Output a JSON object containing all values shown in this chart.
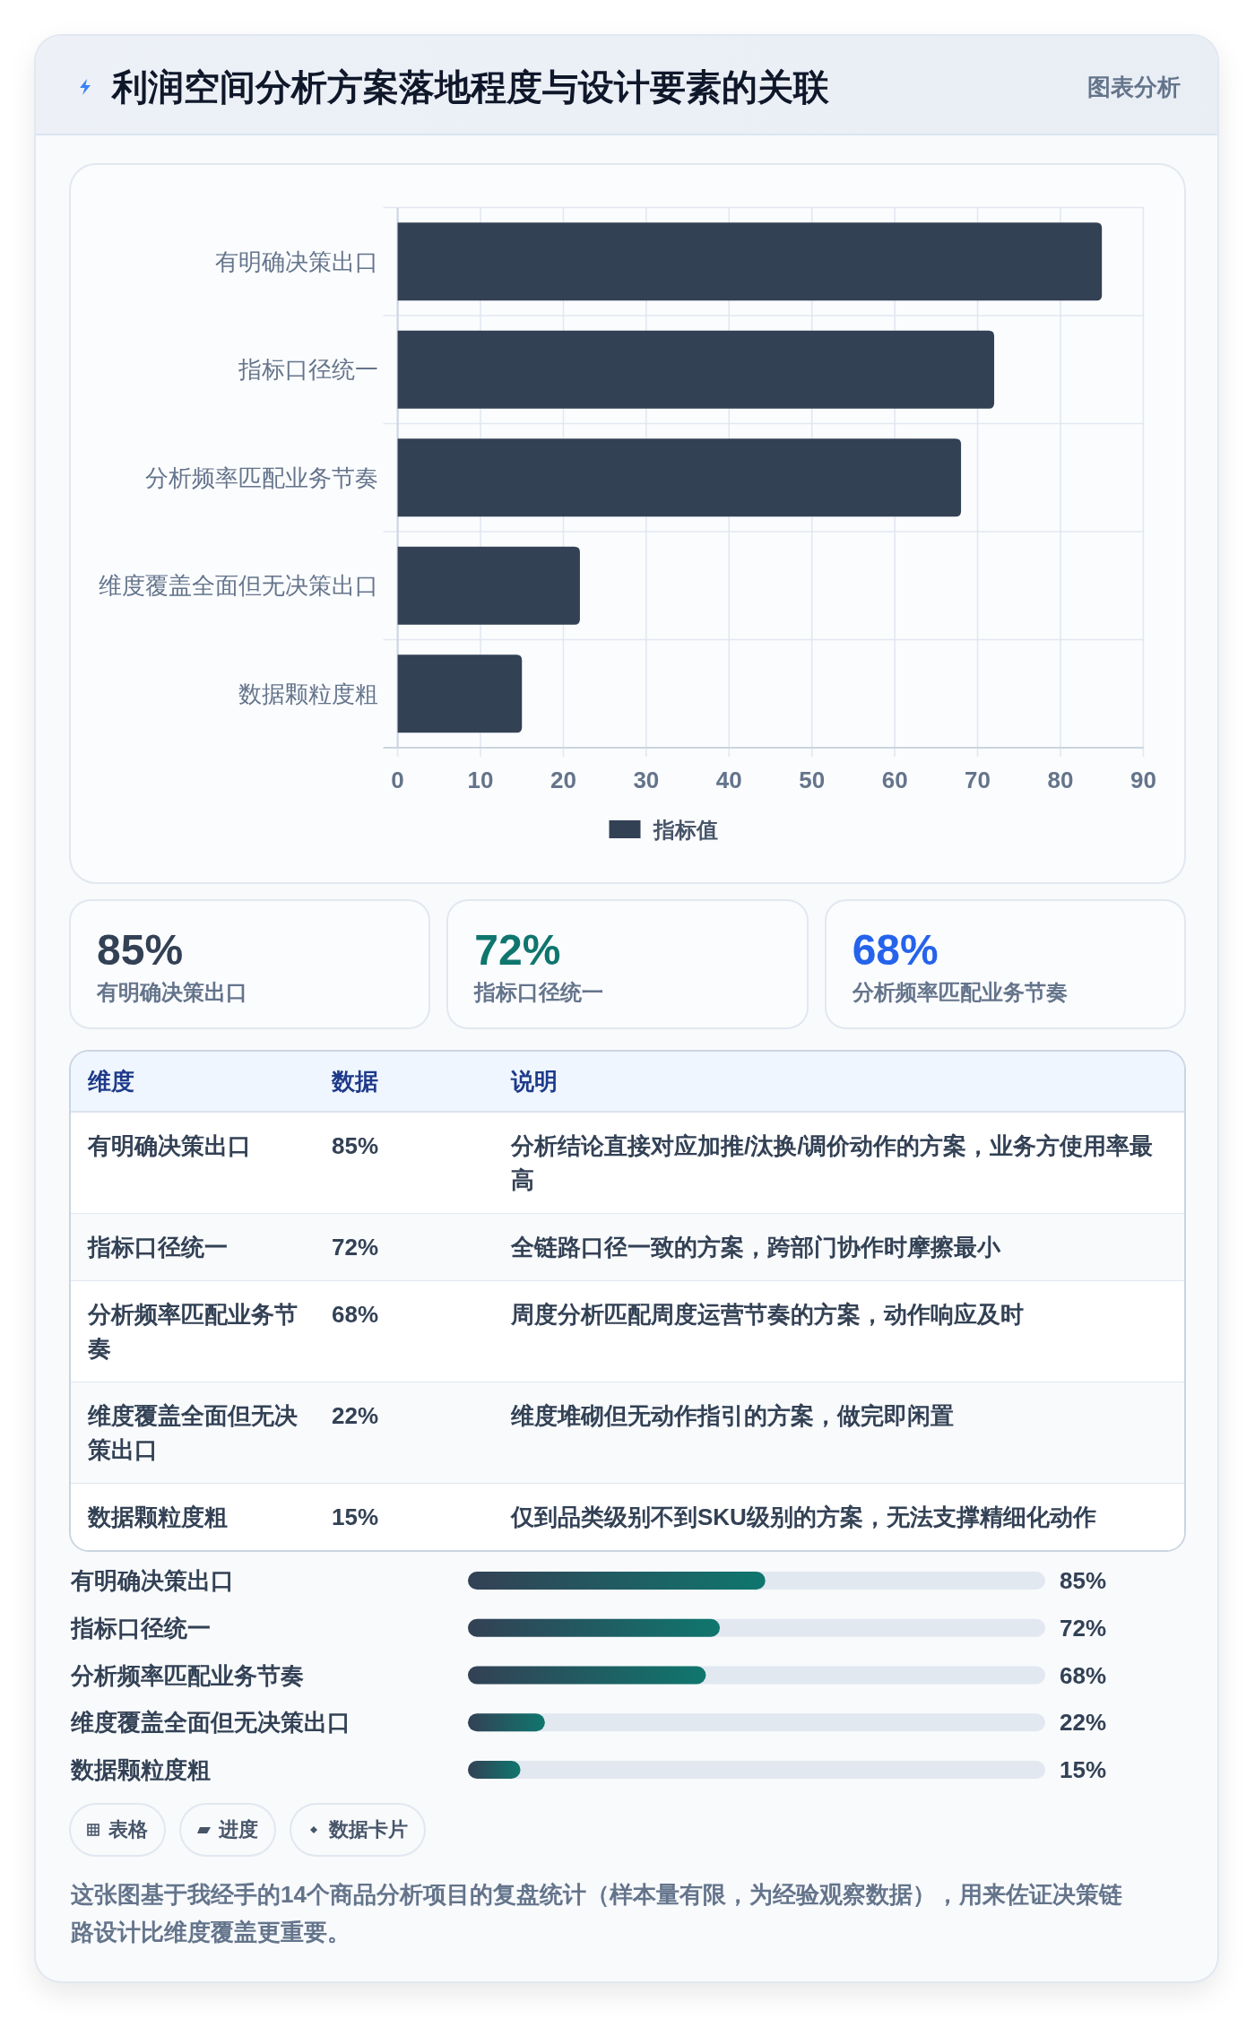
{
  "chart_data": [
    {
      "type": "bar",
      "orientation": "horizontal",
      "title": "利润空间分析方案落地程度与设计要素的关联",
      "subtitle": "图表分析",
      "categories": [
        "有明确决策出口",
        "指标口径统一",
        "分析频率匹配业务节奏",
        "维度覆盖全面但无决策出口",
        "数据颗粒度粗"
      ],
      "series": [
        {
          "name": "指标值",
          "color": "#334155",
          "values": [
            85,
            72,
            68,
            22,
            15
          ]
        }
      ],
      "xlim": [
        0,
        90
      ],
      "xticks": [
        0,
        10,
        20,
        30,
        40,
        50,
        60,
        70,
        80,
        90
      ],
      "grid": true,
      "legend": "bottom"
    },
    {
      "type": "other",
      "annotations": [
        "85%",
        "有明确决策出口",
        "72%",
        "指标口径统一",
        "68%",
        "分析频率匹配业务节奏"
      ],
      "colors": [
        "#334155",
        "#0f766e",
        "#2563eb"
      ]
    },
    {
      "type": "other",
      "annotations": [
        "维度",
        "数据",
        "说明",
        "有明确决策出口",
        "85%",
        "分析结论直接对应加推/汰换/调价动作的方案，业务方使用率最高",
        "指标口径统一",
        "72%",
        "全链路口径一致的方案，跨部门协作时摩擦最小",
        "分析频率匹配业务节奏",
        "68%",
        "周度分析匹配周度运营节奏的方案，动作响应及时",
        "维度覆盖全面但无决策出口",
        "22%",
        "维度堆砌但无动作指引的方案，做完即闲置",
        "数据颗粒度粗",
        "15%",
        "仅到品类级别不到SKU级别的方案，无法支撑精细化动作"
      ]
    },
    {
      "type": "bar",
      "orientation": "horizontal",
      "categories": [
        "有明确决策出口",
        "指标口径统一",
        "分析频率匹配业务节奏",
        "维度覆盖全面但无决策出口",
        "数据颗粒度粗"
      ],
      "values": [
        85,
        72,
        68,
        22,
        15
      ],
      "value_labels": [
        "85%",
        "72%",
        "68%",
        "22%",
        "15%"
      ],
      "color": "#0f766e",
      "xlim": [
        0,
        165
      ]
    },
    {
      "type": "other",
      "annotations": [
        "表格",
        "进度",
        "数据卡片",
        "这张图基于我经手的14个商品分析项目的复盘统计（样本量有限，为经验观察数据），用来佐证决策链路设计比维度覆盖更重要。"
      ]
    }
  ]
}
